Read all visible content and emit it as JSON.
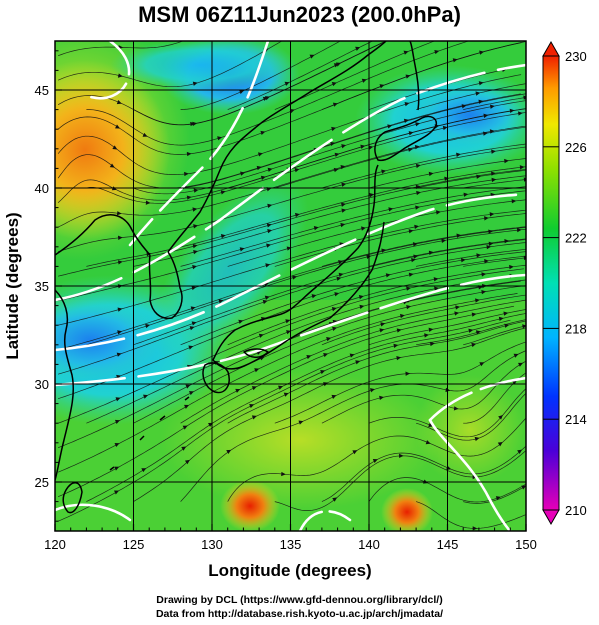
{
  "title": "MSM 06Z11Jun2023 (200.0hPa)",
  "x_axis": {
    "label": "Longitude (degrees)",
    "ticks": [
      "120",
      "125",
      "130",
      "135",
      "140",
      "145",
      "150"
    ]
  },
  "y_axis": {
    "label": "Latitude  (degrees)",
    "ticks": [
      "25",
      "30",
      "35",
      "40",
      "45"
    ]
  },
  "colorbar": {
    "min": 210,
    "max": 230,
    "tick_labels": [
      "230",
      "226",
      "222",
      "218",
      "214",
      "210"
    ]
  },
  "credits": {
    "line1": "Drawing by DCL (https://www.gfd-dennou.org/library/dcl/)",
    "line2": "Data from http://database.rish.kyoto-u.ac.jp/arch/jmadata/"
  },
  "map_data": {
    "lon_range": [
      120,
      150
    ],
    "lat_range": [
      22.5,
      47.5
    ],
    "field": "temperature",
    "pressure_level_hpa": 200,
    "features": [
      {
        "name": "warm anticyclone",
        "lon": 121.5,
        "lat": 42.8
      },
      {
        "name": "warm core",
        "lon": 132.5,
        "lat": 24.0
      },
      {
        "name": "warm core",
        "lon": 142.3,
        "lat": 23.8
      }
    ]
  }
}
